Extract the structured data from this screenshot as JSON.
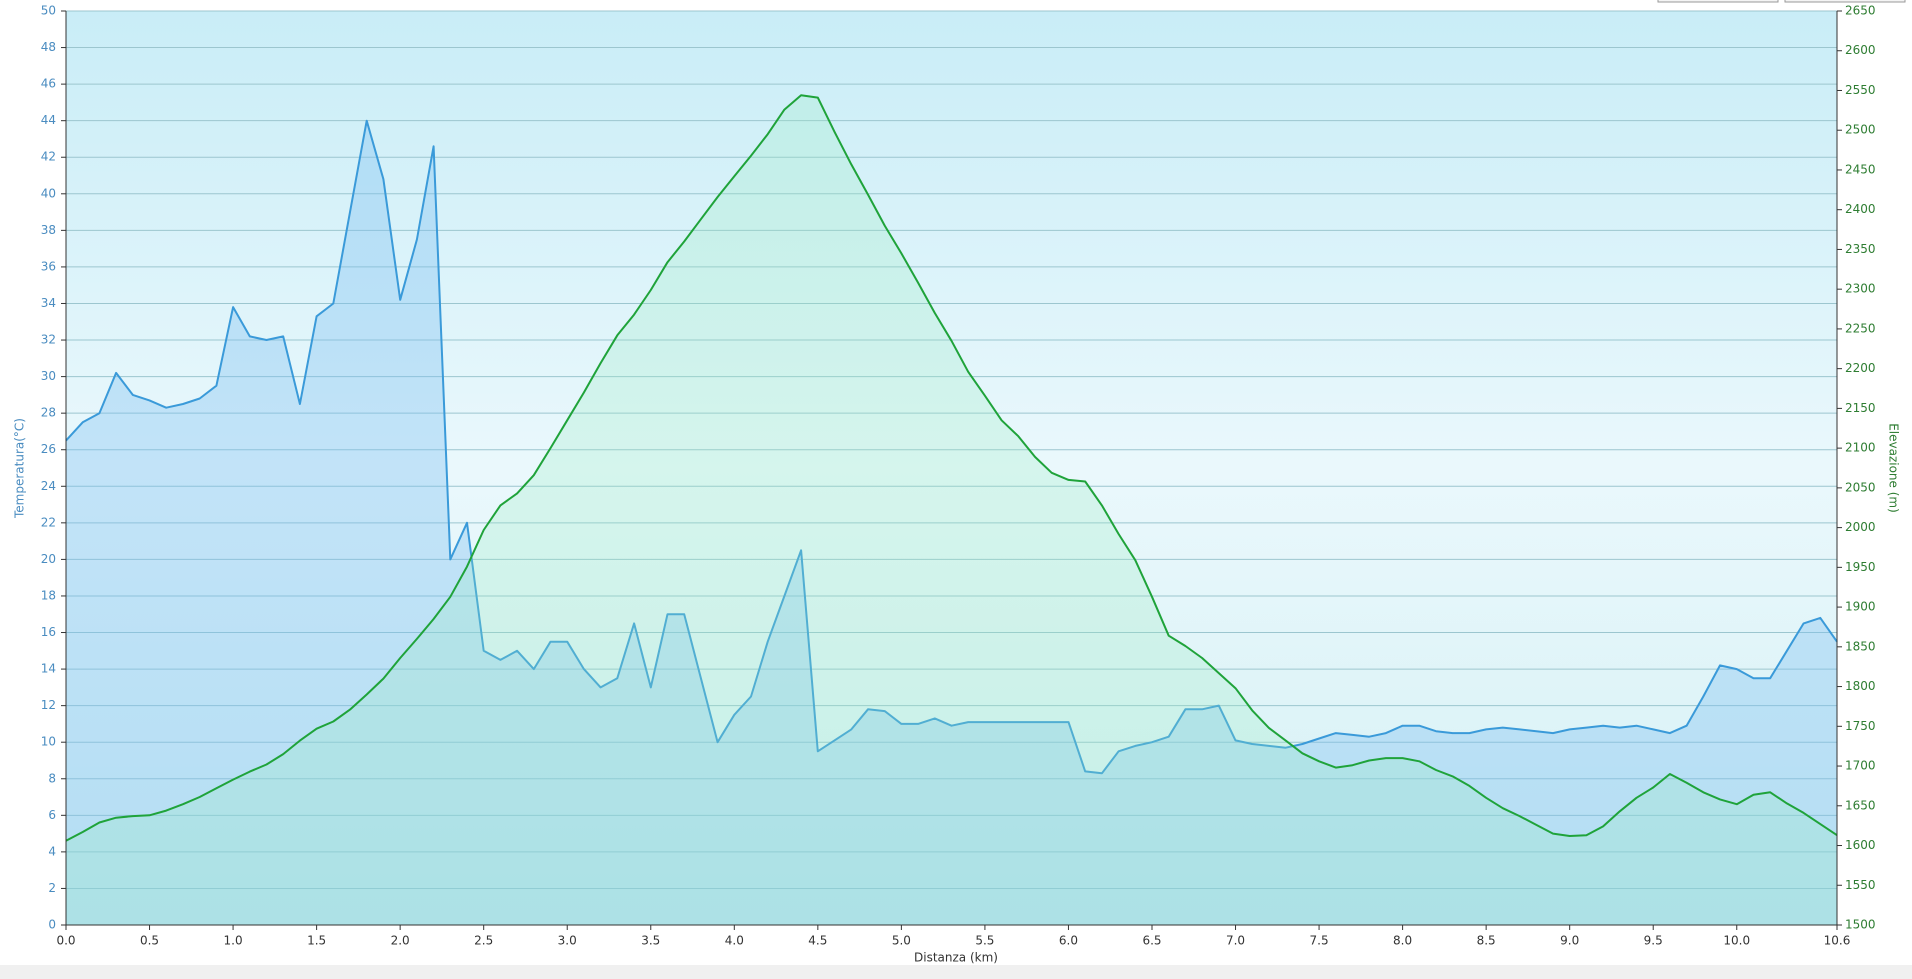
{
  "chart_data": {
    "type": "line",
    "area": true,
    "grid": true,
    "x_label": "Distanza  (km)",
    "y_label": "Temperatura(°C)",
    "y2_label": "Elevazione (m)",
    "xlim": [
      0,
      10.6
    ],
    "xticks": [
      {
        "value": 0,
        "label": "0.0"
      },
      0.5,
      {
        "value": 1,
        "label": "1.0"
      },
      1.5,
      {
        "value": 2,
        "label": "2.0"
      },
      2.5,
      {
        "value": 3,
        "label": "3.0"
      },
      3.5,
      {
        "value": 4,
        "label": "4.0"
      },
      4.5,
      {
        "value": 5,
        "label": "5.0"
      },
      5.5,
      {
        "value": 6,
        "label": "6.0"
      },
      6.5,
      {
        "value": 7,
        "label": "7.0"
      },
      7.5,
      {
        "value": 8,
        "label": "8.0"
      },
      8.5,
      {
        "value": 9,
        "label": "9.0"
      },
      9.5,
      {
        "value": 10,
        "label": "10.0"
      },
      10.6
    ],
    "ylim": [
      0,
      50
    ],
    "yticks": [
      0,
      2,
      4,
      6,
      8,
      10,
      12,
      14,
      16,
      18,
      20,
      22,
      24,
      26,
      28,
      30,
      32,
      34,
      36,
      38,
      40,
      42,
      44,
      46,
      48,
      50
    ],
    "y2lim": [
      1500,
      2650
    ],
    "y2ticks": [
      1500,
      1550,
      1600,
      1650,
      1700,
      1750,
      1800,
      1850,
      1900,
      1950,
      2000,
      2050,
      2100,
      2150,
      2200,
      2250,
      2300,
      2350,
      2400,
      2450,
      2500,
      2550,
      2600,
      2650
    ],
    "x": [
      0,
      0.1,
      0.2,
      0.3,
      0.4,
      0.5,
      0.6,
      0.7,
      0.8,
      0.9,
      1,
      1.1,
      1.2,
      1.3,
      1.4,
      1.5,
      1.6,
      1.7,
      1.8,
      1.9,
      2,
      2.1,
      2.2,
      2.3,
      2.4,
      2.5,
      2.6,
      2.7,
      2.8,
      2.9,
      3,
      3.1,
      3.2,
      3.3,
      3.4,
      3.5,
      3.6,
      3.7,
      3.8,
      3.9,
      4,
      4.1,
      4.2,
      4.3,
      4.4,
      4.5,
      4.6,
      4.7,
      4.8,
      4.9,
      5,
      5.1,
      5.2,
      5.3,
      5.4,
      5.5,
      5.6,
      5.7,
      5.8,
      5.9,
      6,
      6.1,
      6.2,
      6.3,
      6.4,
      6.5,
      6.6,
      6.7,
      6.8,
      6.9,
      7,
      7.1,
      7.2,
      7.3,
      7.4,
      7.5,
      7.6,
      7.7,
      7.8,
      7.9,
      8,
      8.1,
      8.2,
      8.3,
      8.4,
      8.5,
      8.6,
      8.7,
      8.8,
      8.9,
      9,
      9.1,
      9.2,
      9.3,
      9.4,
      9.5,
      9.6,
      9.7,
      9.8,
      9.9,
      10,
      10.1,
      10.2,
      10.3,
      10.4,
      10.5,
      10.6
    ],
    "series": [
      {
        "color": "#3a9ad9",
        "fill": "rgba(120,190,240,0.35)",
        "values": [
          26.5,
          27.5,
          28,
          30.2,
          29,
          28.7,
          28.3,
          28.5,
          28.8,
          29.5,
          33.8,
          32.2,
          32,
          32.2,
          28.5,
          33.3,
          34,
          39,
          44,
          40.8,
          34.2,
          37.5,
          42.6,
          20,
          22,
          15,
          14.5,
          15,
          14,
          15.5,
          15.5,
          14,
          13,
          13.5,
          16.5,
          13,
          17,
          17,
          13.5,
          10,
          11.5,
          12.5,
          15.5,
          18,
          20.5,
          9.5,
          10.1,
          10.7,
          11.8,
          11.7,
          11,
          11,
          11.3,
          10.9,
          11.1,
          11.1,
          11.1,
          11.1,
          11.1,
          11.1,
          11.1,
          8.4,
          8.3,
          9.5,
          9.8,
          10,
          10.3,
          11.8,
          11.8,
          12,
          10.1,
          9.9,
          9.8,
          9.7,
          9.9,
          10.2,
          10.5,
          10.4,
          10.3,
          10.5,
          10.9,
          10.9,
          10.6,
          10.5,
          10.5,
          10.7,
          10.8,
          10.7,
          10.6,
          10.5,
          10.7,
          10.8,
          10.9,
          10.8,
          10.9,
          10.7,
          10.5,
          10.9,
          12.5,
          14.2,
          14,
          13.5,
          13.5,
          15,
          16.5,
          16.8,
          15.5
        ]
      },
      {
        "color": "#1fa33a",
        "fill": "rgba(150,235,190,0.25)",
        "axis": "y2",
        "values": [
          1606,
          1617,
          1629,
          1635,
          1637,
          1638,
          1644,
          1652,
          1661,
          1672,
          1683,
          1693,
          1702,
          1715,
          1732,
          1747,
          1756,
          1771,
          1790,
          1810,
          1836,
          1860,
          1885,
          1913,
          1951,
          1997,
          2028,
          2043,
          2066,
          2100,
          2135,
          2170,
          2207,
          2242,
          2268,
          2299,
          2334,
          2360,
          2388,
          2416,
          2442,
          2468,
          2495,
          2526,
          2544,
          2541,
          2498,
          2457,
          2419,
          2380,
          2345,
          2308,
          2270,
          2235,
          2196,
          2166,
          2135,
          2115,
          2089,
          2069,
          2060,
          2058,
          2028,
          1992,
          1959,
          1913,
          1864,
          1851,
          1836,
          1817,
          1798,
          1770,
          1748,
          1732,
          1716,
          1706,
          1698,
          1701,
          1707,
          1710,
          1710,
          1706,
          1695,
          1687,
          1675,
          1660,
          1647,
          1637,
          1626,
          1615,
          1612,
          1613,
          1624,
          1643,
          1660,
          1673,
          1690,
          1679,
          1667,
          1658,
          1652,
          1664,
          1667,
          1653,
          1641,
          1627,
          1613
        ]
      }
    ]
  }
}
